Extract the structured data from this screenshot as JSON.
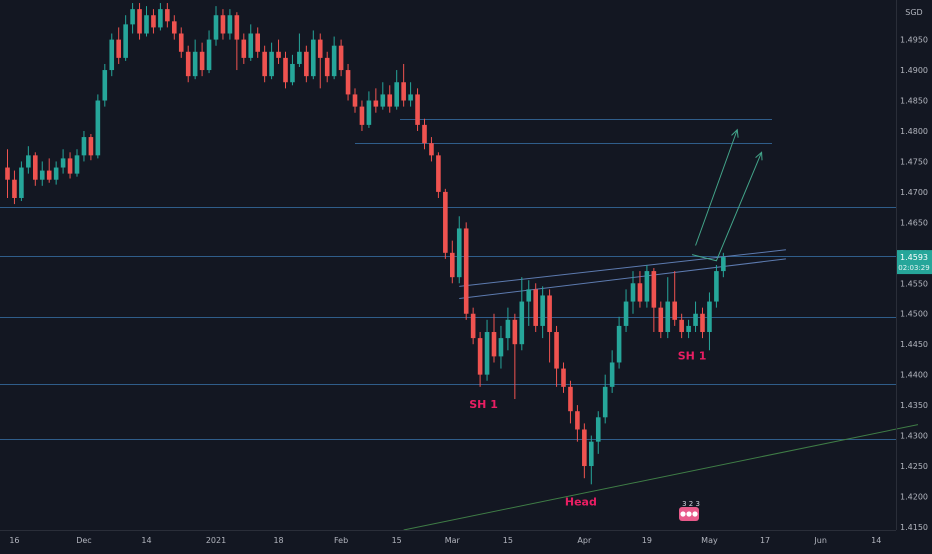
{
  "chart_data": {
    "type": "candlestick",
    "currency_label": "SGD",
    "y_range": [
      1.4145,
      1.5015
    ],
    "y_ticks": [
      "1.4950",
      "1.4900",
      "1.4850",
      "1.4800",
      "1.4750",
      "1.4700",
      "1.4650",
      "1.4600",
      "1.4550",
      "1.4500",
      "1.4450",
      "1.4400",
      "1.4350",
      "1.4300",
      "1.4250",
      "1.4200",
      "1.4150"
    ],
    "x_ticks": [
      {
        "label": "16",
        "i": 1
      },
      {
        "label": "Dec",
        "i": 11
      },
      {
        "label": "14",
        "i": 20
      },
      {
        "label": "2021",
        "i": 30
      },
      {
        "label": "18",
        "i": 39
      },
      {
        "label": "Feb",
        "i": 48
      },
      {
        "label": "15",
        "i": 56
      },
      {
        "label": "Mar",
        "i": 64
      },
      {
        "label": "15",
        "i": 72
      },
      {
        "label": "Apr",
        "i": 83
      },
      {
        "label": "19",
        "i": 92
      },
      {
        "label": "May",
        "i": 101
      },
      {
        "label": "17",
        "i": 109
      },
      {
        "label": "Jun",
        "i": 117
      },
      {
        "label": "14",
        "i": 125
      }
    ],
    "last_price": {
      "value": 1.4593,
      "label": "1.4593",
      "countdown": "02:03:29"
    },
    "horizontal_levels": [
      1.482,
      1.478,
      1.4675,
      1.4595,
      1.4495,
      1.4385,
      1.4295
    ],
    "annotations": [
      {
        "text": "SH 1",
        "i": 68.5,
        "y": 1.4345,
        "color": "#e91e63"
      },
      {
        "text": "SH 1",
        "i": 98.5,
        "y": 1.4425,
        "color": "#e91e63"
      },
      {
        "text": "Head",
        "i": 82.5,
        "y": 1.4185,
        "color": "#e91e63"
      }
    ],
    "trendlines": [
      {
        "from": [
          65,
          1.4545
        ],
        "to": [
          112,
          1.4605
        ],
        "color": "#5d7bb0"
      },
      {
        "from": [
          65,
          1.4525
        ],
        "to": [
          112,
          1.459
        ],
        "color": "#5d7bb0"
      },
      {
        "from": [
          57,
          1.4145
        ],
        "to": [
          131,
          1.4318
        ],
        "color": "#3f7d46"
      }
    ],
    "arrows": [
      {
        "points": [
          [
            99,
            1.4612
          ],
          [
            105,
            1.4802
          ]
        ],
        "color": "#43a58a"
      },
      {
        "points": [
          [
            98.5,
            1.4597
          ],
          [
            102,
            1.4587
          ],
          [
            108.5,
            1.4765
          ]
        ],
        "color": "#43a58a"
      }
    ],
    "earnings_badge": "3 2 3",
    "candles": [
      [
        1.474,
        1.472,
        1.477,
        1.469
      ],
      [
        1.472,
        1.469,
        1.4735,
        1.468
      ],
      [
        1.469,
        1.474,
        1.475,
        1.4685
      ],
      [
        1.474,
        1.476,
        1.4775,
        1.473
      ],
      [
        1.476,
        1.472,
        1.4765,
        1.471
      ],
      [
        1.472,
        1.4735,
        1.475,
        1.471
      ],
      [
        1.4735,
        1.472,
        1.4755,
        1.4715
      ],
      [
        1.472,
        1.474,
        1.475,
        1.4712
      ],
      [
        1.474,
        1.4755,
        1.477,
        1.473
      ],
      [
        1.4755,
        1.473,
        1.4765,
        1.4722
      ],
      [
        1.473,
        1.476,
        1.477,
        1.4725
      ],
      [
        1.476,
        1.479,
        1.48,
        1.475
      ],
      [
        1.479,
        1.476,
        1.4795,
        1.4752
      ],
      [
        1.476,
        1.485,
        1.486,
        1.4755
      ],
      [
        1.485,
        1.49,
        1.491,
        1.484
      ],
      [
        1.49,
        1.495,
        1.496,
        1.489
      ],
      [
        1.495,
        1.492,
        1.497,
        1.491
      ],
      [
        1.492,
        1.4975,
        1.499,
        1.4915
      ],
      [
        1.4975,
        1.5,
        1.501,
        1.496
      ],
      [
        1.5,
        1.496,
        1.501,
        1.495
      ],
      [
        1.496,
        1.499,
        1.5005,
        1.4955
      ],
      [
        1.499,
        1.497,
        1.5,
        1.496
      ],
      [
        1.497,
        1.5,
        1.501,
        1.4965
      ],
      [
        1.5,
        1.498,
        1.501,
        1.497
      ],
      [
        1.498,
        1.496,
        1.499,
        1.495
      ],
      [
        1.496,
        1.493,
        1.497,
        1.492
      ],
      [
        1.493,
        1.489,
        1.494,
        1.488
      ],
      [
        1.489,
        1.493,
        1.495,
        1.4885
      ],
      [
        1.493,
        1.49,
        1.4945,
        1.489
      ],
      [
        1.49,
        1.495,
        1.4965,
        1.4895
      ],
      [
        1.495,
        1.499,
        1.5005,
        1.494
      ],
      [
        1.499,
        1.496,
        1.5,
        1.495
      ],
      [
        1.496,
        1.499,
        1.5,
        1.495
      ],
      [
        1.499,
        1.495,
        1.4995,
        1.49
      ],
      [
        1.495,
        1.492,
        1.496,
        1.491
      ],
      [
        1.492,
        1.496,
        1.4975,
        1.4915
      ],
      [
        1.496,
        1.493,
        1.497,
        1.492
      ],
      [
        1.493,
        1.489,
        1.494,
        1.488
      ],
      [
        1.489,
        1.493,
        1.4945,
        1.4885
      ],
      [
        1.493,
        1.492,
        1.495,
        1.491
      ],
      [
        1.492,
        1.488,
        1.493,
        1.487
      ],
      [
        1.488,
        1.491,
        1.4925,
        1.4875
      ],
      [
        1.491,
        1.493,
        1.496,
        1.4905
      ],
      [
        1.493,
        1.489,
        1.494,
        1.488
      ],
      [
        1.489,
        1.495,
        1.4965,
        1.4885
      ],
      [
        1.495,
        1.492,
        1.496,
        1.487
      ],
      [
        1.492,
        1.489,
        1.493,
        1.488
      ],
      [
        1.489,
        1.494,
        1.4955,
        1.4885
      ],
      [
        1.494,
        1.49,
        1.495,
        1.489
      ],
      [
        1.49,
        1.486,
        1.491,
        1.485
      ],
      [
        1.486,
        1.484,
        1.487,
        1.483
      ],
      [
        1.484,
        1.481,
        1.485,
        1.48
      ],
      [
        1.481,
        1.485,
        1.4865,
        1.4805
      ],
      [
        1.485,
        1.484,
        1.487,
        1.483
      ],
      [
        1.484,
        1.486,
        1.488,
        1.4835
      ],
      [
        1.486,
        1.484,
        1.4875,
        1.483
      ],
      [
        1.484,
        1.488,
        1.49,
        1.4835
      ],
      [
        1.488,
        1.485,
        1.491,
        1.484
      ],
      [
        1.485,
        1.486,
        1.488,
        1.484
      ],
      [
        1.486,
        1.481,
        1.487,
        1.48
      ],
      [
        1.481,
        1.478,
        1.482,
        1.477
      ],
      [
        1.478,
        1.476,
        1.479,
        1.475
      ],
      [
        1.476,
        1.47,
        1.4765,
        1.469
      ],
      [
        1.47,
        1.46,
        1.4705,
        1.459
      ],
      [
        1.46,
        1.456,
        1.462,
        1.455
      ],
      [
        1.456,
        1.464,
        1.466,
        1.455
      ],
      [
        1.464,
        1.45,
        1.465,
        1.449
      ],
      [
        1.45,
        1.446,
        1.451,
        1.445
      ],
      [
        1.446,
        1.44,
        1.447,
        1.438
      ],
      [
        1.44,
        1.447,
        1.449,
        1.439
      ],
      [
        1.447,
        1.443,
        1.45,
        1.442
      ],
      [
        1.443,
        1.446,
        1.448,
        1.441
      ],
      [
        1.446,
        1.449,
        1.451,
        1.444
      ],
      [
        1.449,
        1.445,
        1.45,
        1.436
      ],
      [
        1.445,
        1.452,
        1.456,
        1.444
      ],
      [
        1.452,
        1.454,
        1.4555,
        1.448
      ],
      [
        1.454,
        1.448,
        1.455,
        1.447
      ],
      [
        1.448,
        1.453,
        1.4545,
        1.446
      ],
      [
        1.453,
        1.447,
        1.454,
        1.442
      ],
      [
        1.447,
        1.441,
        1.448,
        1.438
      ],
      [
        1.441,
        1.438,
        1.442,
        1.437
      ],
      [
        1.438,
        1.434,
        1.439,
        1.432
      ],
      [
        1.434,
        1.431,
        1.435,
        1.429
      ],
      [
        1.431,
        1.425,
        1.432,
        1.423
      ],
      [
        1.425,
        1.429,
        1.43,
        1.422
      ],
      [
        1.429,
        1.433,
        1.434,
        1.427
      ],
      [
        1.433,
        1.438,
        1.44,
        1.432
      ],
      [
        1.438,
        1.442,
        1.444,
        1.437
      ],
      [
        1.442,
        1.448,
        1.4495,
        1.441
      ],
      [
        1.448,
        1.452,
        1.454,
        1.447
      ],
      [
        1.452,
        1.455,
        1.457,
        1.45
      ],
      [
        1.455,
        1.452,
        1.457,
        1.451
      ],
      [
        1.452,
        1.457,
        1.458,
        1.451
      ],
      [
        1.457,
        1.451,
        1.4575,
        1.447
      ],
      [
        1.451,
        1.447,
        1.452,
        1.446
      ],
      [
        1.447,
        1.452,
        1.456,
        1.446
      ],
      [
        1.452,
        1.449,
        1.457,
        1.448
      ],
      [
        1.449,
        1.447,
        1.45,
        1.446
      ],
      [
        1.447,
        1.448,
        1.449,
        1.446
      ],
      [
        1.448,
        1.45,
        1.452,
        1.447
      ],
      [
        1.45,
        1.447,
        1.451,
        1.446
      ],
      [
        1.447,
        1.452,
        1.4535,
        1.444
      ],
      [
        1.452,
        1.457,
        1.458,
        1.451
      ],
      [
        1.457,
        1.4593,
        1.46,
        1.456
      ]
    ]
  }
}
